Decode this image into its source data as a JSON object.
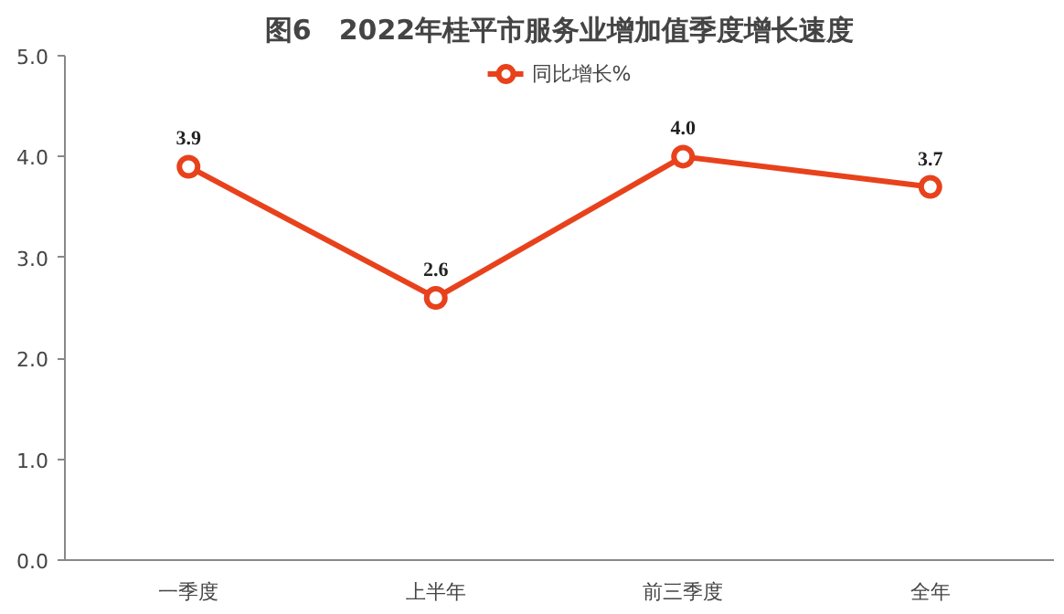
{
  "chart_data": {
    "type": "line",
    "title": "图6　2022年桂平市服务业增加值季度增长速度",
    "categories": [
      "一季度",
      "上半年",
      "前三季度",
      "全年"
    ],
    "series": [
      {
        "name": "同比增长%",
        "color": "#e8421c",
        "values": [
          3.9,
          2.6,
          4.0,
          3.7
        ],
        "value_labels": [
          "3.9",
          "2.6",
          "4.0",
          "3.7"
        ]
      }
    ],
    "ylim": [
      0,
      5
    ],
    "yticks": [
      {
        "value": 0,
        "label": "0.0"
      },
      {
        "value": 1,
        "label": "1.0"
      },
      {
        "value": 2,
        "label": "2.0"
      },
      {
        "value": 3,
        "label": "3.0"
      },
      {
        "value": 4,
        "label": "4.0"
      },
      {
        "value": 5,
        "label": "5.0"
      }
    ],
    "legend": "top",
    "marker": "circle",
    "line_style": "solid",
    "grid": false
  }
}
